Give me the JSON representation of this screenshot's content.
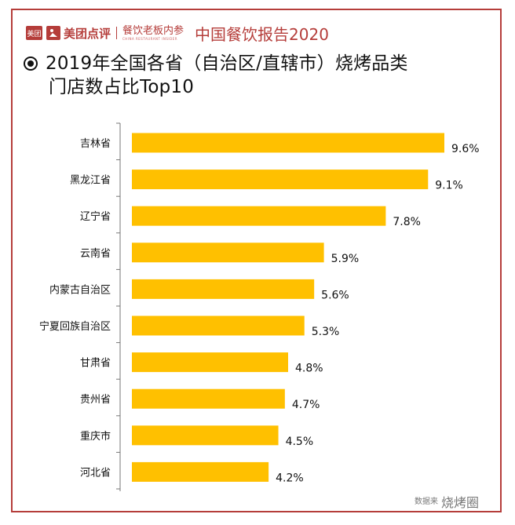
{
  "header": {
    "logo_badge": "美团",
    "brand_name": "美团点评",
    "sub_brand": "餐饮老板内参",
    "sub_brand_small": "CHINA RESTAURANT INSIDER",
    "report_title": "中国餐饮报告2020"
  },
  "footer": {
    "source": "数据来",
    "watermark": "烧烤圈"
  },
  "colors": {
    "accent": "#b53d3a",
    "bar": "#ffc000"
  },
  "chart_data": {
    "type": "bar",
    "orientation": "horizontal",
    "title_line1": "2019年全国各省（自治区/直辖市）烧烤品类",
    "title_line2": "门店数占比Top10",
    "categories": [
      "吉林省",
      "黑龙江省",
      "辽宁省",
      "云南省",
      "内蒙古自治区",
      "宁夏回族自治区",
      "甘肃省",
      "贵州省",
      "重庆市",
      "河北省"
    ],
    "values": [
      9.6,
      9.1,
      7.8,
      5.9,
      5.6,
      5.3,
      4.8,
      4.7,
      4.5,
      4.2
    ],
    "value_labels": [
      "9.6%",
      "9.1%",
      "7.8%",
      "5.9%",
      "5.6%",
      "5.3%",
      "4.8%",
      "4.7%",
      "4.5%",
      "4.2%"
    ],
    "xlim": [
      0,
      10
    ],
    "grid": false,
    "legend": "none"
  }
}
